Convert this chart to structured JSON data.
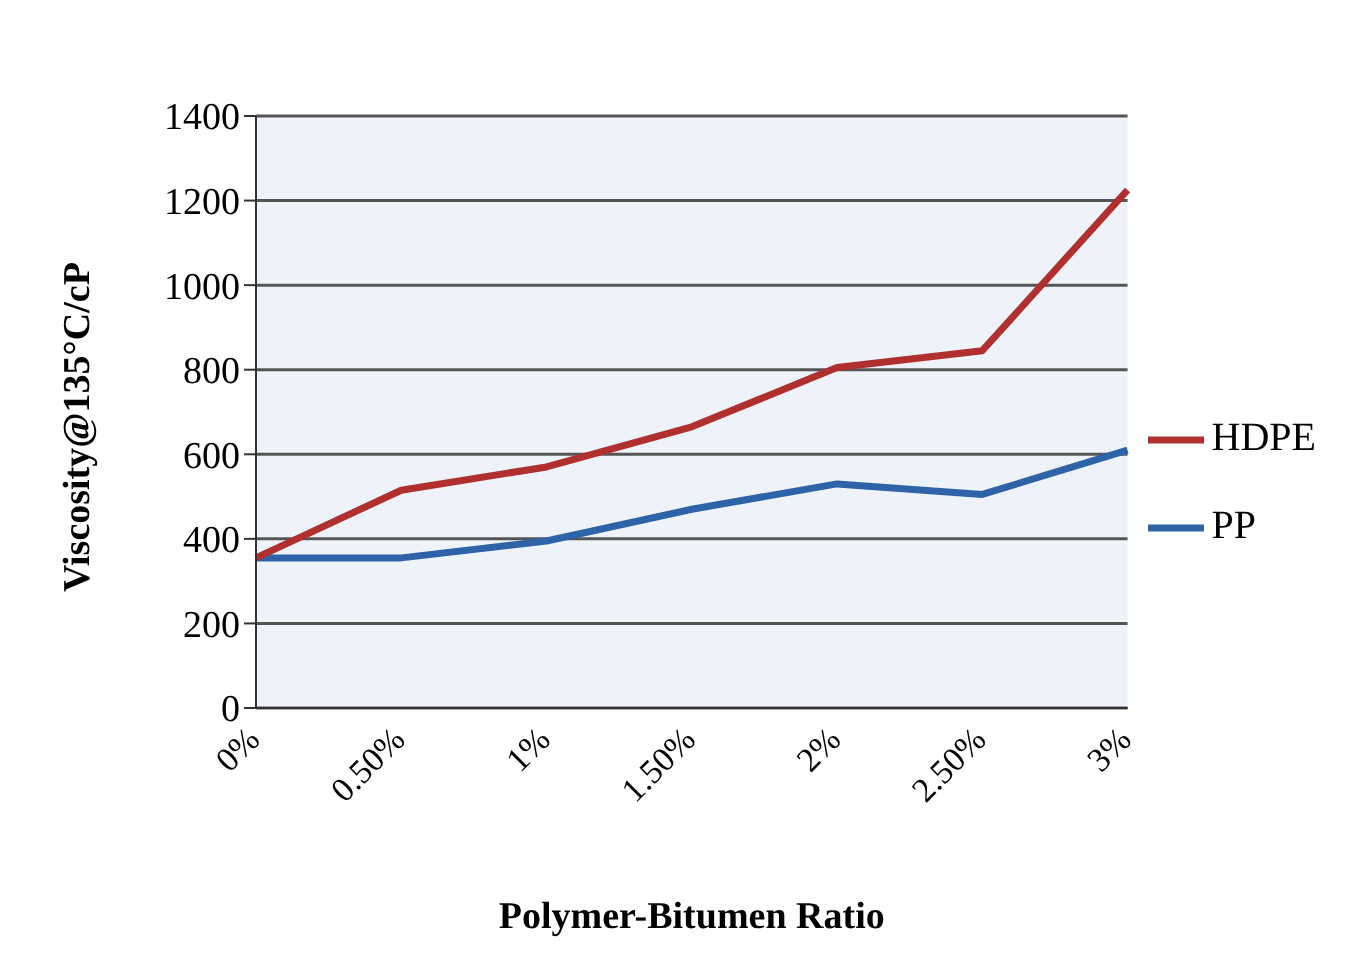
{
  "chart_data": {
    "type": "line",
    "xlabel": "Polymer-Bitumen Ratio",
    "ylabel": "Viscosity@135°C/cP",
    "categories": [
      "0%",
      "0.50%",
      "1%",
      "1.50%",
      "2%",
      "2.50%",
      "3%"
    ],
    "series": [
      {
        "name": "PP",
        "color": "#2e63a8",
        "values": [
          355,
          355,
          395,
          470,
          530,
          505,
          610
        ]
      },
      {
        "name": "HDPE",
        "color": "#b03030",
        "values": [
          355,
          515,
          570,
          665,
          805,
          845,
          1225
        ]
      }
    ],
    "ylim": [
      0,
      1400
    ],
    "yticks": [
      0,
      200,
      400,
      600,
      800,
      1000,
      1200,
      1400
    ],
    "grid": "y",
    "legend": "right",
    "marker": "none"
  }
}
